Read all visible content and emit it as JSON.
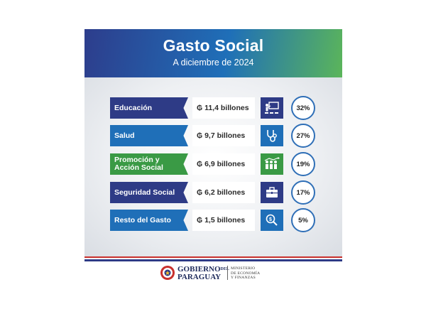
{
  "header": {
    "title": "Gasto Social",
    "subtitle": "A diciembre de 2024"
  },
  "chart_data": {
    "type": "table",
    "title": "Gasto Social",
    "subtitle": "A diciembre de 2024",
    "rows": [
      {
        "category_lines": [
          "Educación"
        ],
        "amount": "₲ 11,4 billones",
        "value": 11.4,
        "percent": "32%",
        "color": "#2e3b86",
        "icon": "teacher-icon"
      },
      {
        "category_lines": [
          "Salud"
        ],
        "amount": "₲ 9,7 billones",
        "value": 9.7,
        "percent": "27%",
        "color": "#1f6fb8",
        "icon": "stethoscope-icon"
      },
      {
        "category_lines": [
          "Promoción y",
          "Acción Social"
        ],
        "amount": "₲ 6,9 billones",
        "value": 6.9,
        "percent": "19%",
        "color": "#3a9a45",
        "icon": "people-growth-icon"
      },
      {
        "category_lines": [
          "Seguridad Social"
        ],
        "amount": "₲ 6,2 billones",
        "value": 6.2,
        "percent": "17%",
        "color": "#2e3b86",
        "icon": "briefcase-icon"
      },
      {
        "category_lines": [
          "Resto del Gasto"
        ],
        "amount": "₲ 1,5 billones",
        "value": 1.5,
        "percent": "5%",
        "color": "#1f6fb8",
        "icon": "magnifier-coin-icon"
      }
    ]
  },
  "footer": {
    "gov_line1": "GOBIERNO",
    "gov_del": "DEL",
    "gov_line2": "PARAGUAY",
    "ministry_lines": [
      "MINISTERIO",
      "DE ECONOMÍA",
      "Y FINANZAS"
    ],
    "stripe_colors": [
      "#c8302c",
      "#ffffff",
      "#2e3b86"
    ]
  }
}
